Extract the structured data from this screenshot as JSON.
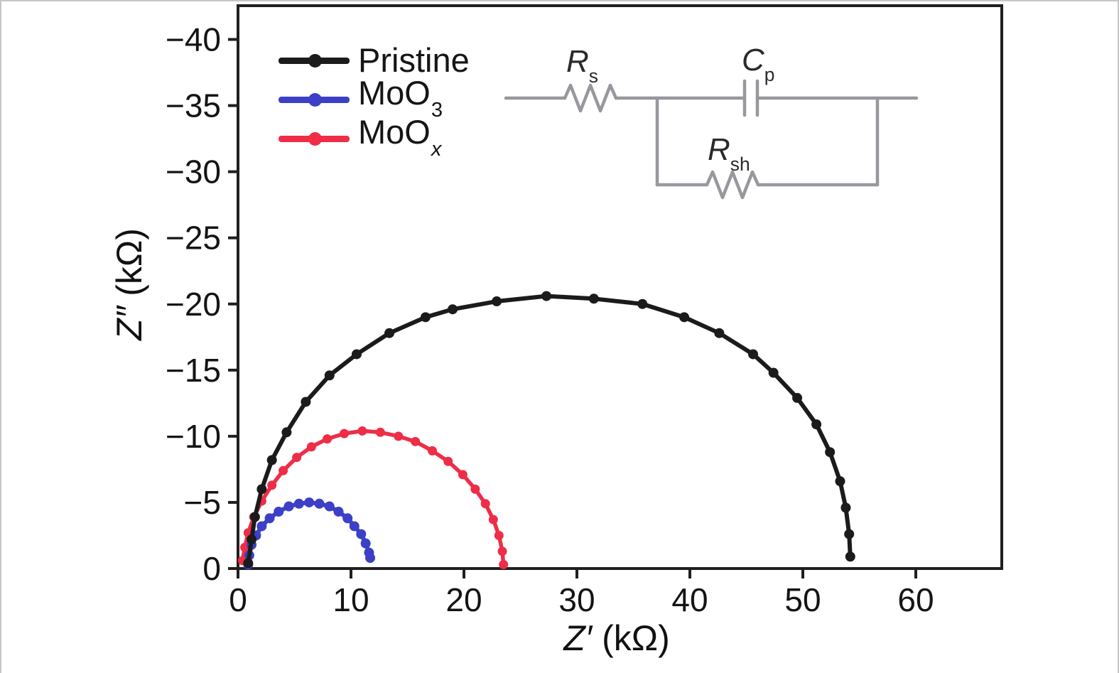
{
  "figure": {
    "background": "#ffffff",
    "frame_color": "#c6c6ca",
    "plot_frame_color": "#1f1f1f"
  },
  "axes": {
    "x": {
      "sym": "Z′",
      "unit": " (kΩ)"
    },
    "y": {
      "sym": "Z″",
      "unit": " (kΩ)"
    }
  },
  "legend": {
    "items": [
      {
        "label": "Pristine",
        "sub": "",
        "color": "#1b1b1b"
      },
      {
        "label": "MoO",
        "sub": "3",
        "color": "#3c40c6"
      },
      {
        "label": "MoO",
        "sub": "x",
        "color": "#ee2d47"
      }
    ]
  },
  "circuit": {
    "rs": {
      "sym": "R",
      "sub": "s"
    },
    "cp": {
      "sym": "C",
      "sub": "p"
    },
    "rsh": {
      "sym": "R",
      "sub": "sh"
    },
    "wire_color": "#97979d"
  },
  "chart_data": {
    "type": "scatter",
    "title": "",
    "xlabel": "Z′ (kΩ)",
    "ylabel": "Z″ (kΩ)",
    "xlim": [
      0,
      67
    ],
    "ylim": [
      0,
      -42.5
    ],
    "grid": false,
    "legend_position": "upper-left-inside",
    "xticks": [
      0,
      10,
      20,
      30,
      40,
      50,
      60
    ],
    "xtick_labels": [
      "0",
      "10",
      "20",
      "30",
      "40",
      "50",
      "60"
    ],
    "yticks": [
      0,
      -5,
      -10,
      -15,
      -20,
      -25,
      -30,
      -35,
      -40
    ],
    "ytick_labels": [
      "0",
      "−5",
      "−10",
      "−15",
      "−20",
      "−25",
      "−30",
      "−35",
      "−40"
    ],
    "series": [
      {
        "name": "MoOx",
        "color": "#ee2d47",
        "line_width": 5.5,
        "marker_size": 6.5,
        "points": [
          [
            0.4,
            -0.6
          ],
          [
            0.6,
            -1.6
          ],
          [
            0.9,
            -2.7
          ],
          [
            1.4,
            -3.9
          ],
          [
            2.1,
            -5.1
          ],
          [
            3.0,
            -6.3
          ],
          [
            4.0,
            -7.4
          ],
          [
            5.2,
            -8.4
          ],
          [
            6.5,
            -9.2
          ],
          [
            7.9,
            -9.8
          ],
          [
            9.4,
            -10.2
          ],
          [
            11.0,
            -10.4
          ],
          [
            12.6,
            -10.3
          ],
          [
            14.2,
            -10.0
          ],
          [
            15.7,
            -9.6
          ],
          [
            17.2,
            -8.9
          ],
          [
            18.6,
            -8.1
          ],
          [
            19.9,
            -7.1
          ],
          [
            21.0,
            -6.0
          ],
          [
            21.9,
            -4.9
          ],
          [
            22.6,
            -3.7
          ],
          [
            23.1,
            -2.5
          ],
          [
            23.4,
            -1.3
          ],
          [
            23.5,
            -0.3
          ]
        ]
      },
      {
        "name": "MoO3",
        "color": "#3c40c6",
        "line_width": 6,
        "marker_size": 7,
        "points": [
          [
            0.9,
            -0.3
          ],
          [
            1.0,
            -1.0
          ],
          [
            1.2,
            -1.8
          ],
          [
            1.6,
            -2.5
          ],
          [
            2.1,
            -3.2
          ],
          [
            2.8,
            -3.8
          ],
          [
            3.6,
            -4.3
          ],
          [
            4.5,
            -4.7
          ],
          [
            5.4,
            -4.9
          ],
          [
            6.3,
            -5.0
          ],
          [
            7.2,
            -4.9
          ],
          [
            8.1,
            -4.7
          ],
          [
            8.9,
            -4.3
          ],
          [
            9.7,
            -3.8
          ],
          [
            10.3,
            -3.2
          ],
          [
            10.9,
            -2.6
          ],
          [
            11.3,
            -1.9
          ],
          [
            11.6,
            -1.2
          ],
          [
            11.7,
            -0.8
          ]
        ]
      },
      {
        "name": "Pristine",
        "color": "#1b1b1b",
        "line_width": 6,
        "marker_size": 7,
        "points": [
          [
            0.9,
            -0.4
          ],
          [
            1.2,
            -2.2
          ],
          [
            1.5,
            -3.9
          ],
          [
            2.1,
            -6.0
          ],
          [
            3.0,
            -8.2
          ],
          [
            4.3,
            -10.3
          ],
          [
            6.0,
            -12.6
          ],
          [
            8.1,
            -14.6
          ],
          [
            10.5,
            -16.2
          ],
          [
            13.4,
            -17.8
          ],
          [
            16.6,
            -19.0
          ],
          [
            19.0,
            -19.6
          ],
          [
            22.9,
            -20.2
          ],
          [
            27.3,
            -20.6
          ],
          [
            31.5,
            -20.4
          ],
          [
            35.8,
            -20.0
          ],
          [
            39.5,
            -19.0
          ],
          [
            42.6,
            -17.8
          ],
          [
            45.6,
            -16.2
          ],
          [
            47.4,
            -14.8
          ],
          [
            49.5,
            -12.9
          ],
          [
            51.2,
            -10.9
          ],
          [
            52.4,
            -8.8
          ],
          [
            53.3,
            -6.6
          ],
          [
            53.8,
            -4.6
          ],
          [
            54.1,
            -2.6
          ],
          [
            54.2,
            -0.9
          ]
        ]
      }
    ]
  }
}
